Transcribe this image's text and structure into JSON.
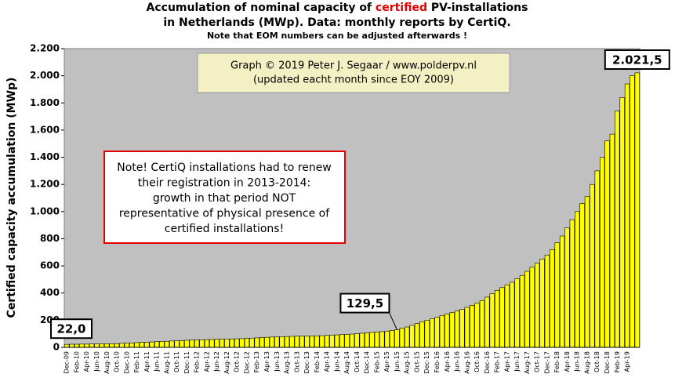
{
  "chart_data": {
    "type": "bar",
    "title_parts": [
      "Accumulation  of nominal capacity of ",
      "certified",
      " PV-installations"
    ],
    "title_line2": "in Netherlands (MWp). Data: monthly  reports by CertiQ.",
    "subtitle": "Note that EOM numbers can be adjusted afterwards  !",
    "y_label": "Certified capacity accumulation (MWp)",
    "credit": [
      "Graph © 2019 Peter J. Segaar / www.polderpv.nl",
      "(updated eacht month since EOY 2009)"
    ],
    "note": [
      "Note! CertiQ installations had to renew",
      "their registration in 2013-2014:",
      "growth in that period NOT",
      "representative of physical presence of",
      "certified installations!"
    ],
    "color": "#ffff00",
    "plot_background": "#c0c0c0",
    "categories": [
      "Dec-09",
      null,
      "Feb-10",
      null,
      "Apr-10",
      null,
      "Jun-10",
      null,
      "Aug-10",
      null,
      "Oct-10",
      null,
      "Dec-10",
      null,
      "Feb-11",
      null,
      "Apr-11",
      null,
      "Jun-11",
      null,
      "Aug-11",
      null,
      "Oct-11",
      null,
      "Dec-11",
      null,
      "Feb-12",
      null,
      "Apr-12",
      null,
      "Jun-12",
      null,
      "Aug-12",
      null,
      "Oct-12",
      null,
      "Dec-12",
      null,
      "Feb-13",
      null,
      "Apr-13",
      null,
      "Jun-13",
      null,
      "Aug-13",
      null,
      "Oct-13",
      null,
      "Dec-13",
      null,
      "Feb-14",
      null,
      "Apr-14",
      null,
      "Jun-14",
      null,
      "Aug-14",
      null,
      "Oct-14",
      null,
      "Dec-14",
      null,
      "Feb-15",
      null,
      "Apr-15",
      null,
      "Jun-15",
      null,
      "Aug-15",
      null,
      "Oct-15",
      null,
      "Dec-15",
      null,
      "Feb-16",
      null,
      "Apr-16",
      null,
      "Jun-16",
      null,
      "Aug-16",
      null,
      "Oct-16",
      null,
      "Dec-16",
      null,
      "Feb-17",
      null,
      "Apr-17",
      null,
      "Jun-17",
      null,
      "Aug-17",
      null,
      "Oct-17",
      null,
      "Dec-17",
      null,
      "Feb-18",
      null,
      "Apr-18",
      null,
      "Jun-18",
      null,
      "Aug-18",
      null,
      "Oct-18",
      null,
      "Dec-18",
      null,
      "Feb-19",
      null,
      "Apr-19",
      null,
      null
    ],
    "values": [
      22.0,
      23,
      23,
      24,
      24,
      25,
      25,
      26,
      26,
      27,
      28,
      29,
      31,
      33,
      35,
      37,
      38,
      40,
      42,
      44,
      45,
      47,
      48,
      50,
      52,
      54,
      55,
      56,
      57,
      58,
      59,
      60,
      61,
      62,
      63,
      64,
      66,
      68,
      70,
      72,
      74,
      76,
      78,
      79,
      80,
      81,
      82,
      83,
      84,
      84,
      85,
      86,
      88,
      90,
      92,
      94,
      96,
      98,
      101,
      104,
      107,
      110,
      113,
      116,
      120,
      125,
      129.5,
      140,
      150,
      162,
      175,
      188,
      200,
      212,
      222,
      235,
      245,
      256,
      268,
      280,
      295,
      310,
      325,
      345,
      370,
      395,
      420,
      440,
      460,
      480,
      505,
      530,
      560,
      590,
      620,
      650,
      680,
      720,
      770,
      820,
      880,
      940,
      1000,
      1060,
      1110,
      1200,
      1300,
      1400,
      1520,
      1570,
      1740,
      1840,
      1940,
      2000,
      2021.5
    ],
    "value_labels": [
      "22,0",
      null,
      null,
      null,
      null,
      null,
      null,
      null,
      null,
      null,
      null,
      null,
      null,
      null,
      null,
      null,
      null,
      null,
      null,
      null,
      null,
      null,
      null,
      null,
      null,
      null,
      null,
      null,
      null,
      null,
      null,
      null,
      null,
      null,
      null,
      null,
      null,
      null,
      null,
      null,
      null,
      null,
      null,
      null,
      null,
      null,
      null,
      null,
      null,
      null,
      null,
      null,
      null,
      null,
      null,
      null,
      null,
      null,
      null,
      null,
      null,
      null,
      null,
      null,
      null,
      null,
      "129,5",
      null,
      null,
      null,
      null,
      null,
      null,
      null,
      null,
      null,
      null,
      null,
      null,
      null,
      null,
      null,
      null,
      null,
      null,
      null,
      null,
      null,
      null,
      null,
      null,
      null,
      null,
      null,
      null,
      null,
      null,
      null,
      null,
      null,
      null,
      null,
      null,
      null,
      null,
      null,
      null,
      null,
      null,
      null,
      null,
      null,
      null,
      null,
      "2.021,5"
    ],
    "ylim": [
      0,
      2200
    ],
    "yticks": [
      0,
      200,
      400,
      600,
      800,
      {
        "value": 1000,
        "label": "1.000"
      },
      {
        "value": 1200,
        "label": "1.200"
      },
      {
        "value": 1400,
        "label": "1.400"
      },
      {
        "value": 1600,
        "label": "1.600"
      },
      {
        "value": 1800,
        "label": "1.800"
      },
      {
        "value": 2000,
        "label": "2.000"
      },
      {
        "value": 2200,
        "label": "2.200"
      }
    ],
    "grid": false
  }
}
